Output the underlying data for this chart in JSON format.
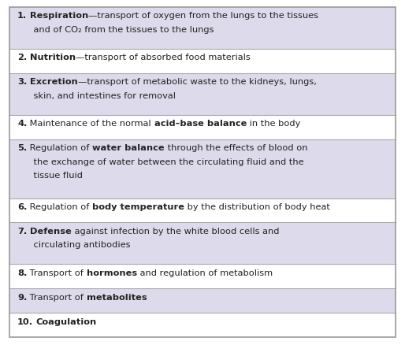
{
  "figsize": [
    5.14,
    4.39
  ],
  "dpi": 100,
  "background_color": "#ffffff",
  "border_color": "#999999",
  "row_colors": [
    "#dddaeb",
    "#ffffff",
    "#dddaeb",
    "#ffffff",
    "#dddaeb",
    "#ffffff",
    "#dddaeb",
    "#ffffff",
    "#dddaeb",
    "#ffffff"
  ],
  "items": [
    {
      "segments": [
        {
          "text": "1.",
          "bold": true
        },
        {
          "text": " ",
          "bold": false
        },
        {
          "text": "Respiration",
          "bold": true
        },
        {
          "text": "—transport of oxygen from the lungs to the tissues",
          "bold": false
        },
        {
          "text": "\n    and of CO₂ from the tissues to the lungs",
          "bold": false
        }
      ],
      "lines": 2
    },
    {
      "segments": [
        {
          "text": "2.",
          "bold": true
        },
        {
          "text": " ",
          "bold": false
        },
        {
          "text": "Nutrition",
          "bold": true
        },
        {
          "text": "—transport of absorbed food materials",
          "bold": false
        }
      ],
      "lines": 1
    },
    {
      "segments": [
        {
          "text": "3.",
          "bold": true
        },
        {
          "text": " ",
          "bold": false
        },
        {
          "text": "Excretion",
          "bold": true
        },
        {
          "text": "—transport of metabolic waste to the kidneys, lungs,",
          "bold": false
        },
        {
          "text": "\n    skin, and intestines for removal",
          "bold": false
        }
      ],
      "lines": 2
    },
    {
      "segments": [
        {
          "text": "4.",
          "bold": true
        },
        {
          "text": " Maintenance of the normal ",
          "bold": false
        },
        {
          "text": "acid–base balance",
          "bold": true
        },
        {
          "text": " in the body",
          "bold": false
        }
      ],
      "lines": 1
    },
    {
      "segments": [
        {
          "text": "5.",
          "bold": true
        },
        {
          "text": " Regulation of ",
          "bold": false
        },
        {
          "text": "water balance",
          "bold": true
        },
        {
          "text": " through the effects of blood on",
          "bold": false
        },
        {
          "text": "\n    the exchange of water between the circulating fluid and the",
          "bold": false
        },
        {
          "text": "\n    tissue fluid",
          "bold": false
        }
      ],
      "lines": 3
    },
    {
      "segments": [
        {
          "text": "6.",
          "bold": true
        },
        {
          "text": " Regulation of ",
          "bold": false
        },
        {
          "text": "body temperature",
          "bold": true
        },
        {
          "text": " by the distribution of body heat",
          "bold": false
        }
      ],
      "lines": 1
    },
    {
      "segments": [
        {
          "text": "7.",
          "bold": true
        },
        {
          "text": " ",
          "bold": false
        },
        {
          "text": "Defense",
          "bold": true
        },
        {
          "text": " against infection by the white blood cells and",
          "bold": false
        },
        {
          "text": "\n    circulating antibodies",
          "bold": false
        }
      ],
      "lines": 2
    },
    {
      "segments": [
        {
          "text": "8.",
          "bold": true
        },
        {
          "text": " Transport of ",
          "bold": false
        },
        {
          "text": "hormones",
          "bold": true
        },
        {
          "text": " and regulation of metabolism",
          "bold": false
        }
      ],
      "lines": 1
    },
    {
      "segments": [
        {
          "text": "9.",
          "bold": true
        },
        {
          "text": " Transport of ",
          "bold": false
        },
        {
          "text": "metabolites",
          "bold": true
        }
      ],
      "lines": 1
    },
    {
      "segments": [
        {
          "text": "10.",
          "bold": true
        },
        {
          "text": " ",
          "bold": false
        },
        {
          "text": "Coagulation",
          "bold": true
        }
      ],
      "lines": 1
    }
  ],
  "text_color": "#222222",
  "font_size": 8.2,
  "font_family": "DejaVu Sans"
}
